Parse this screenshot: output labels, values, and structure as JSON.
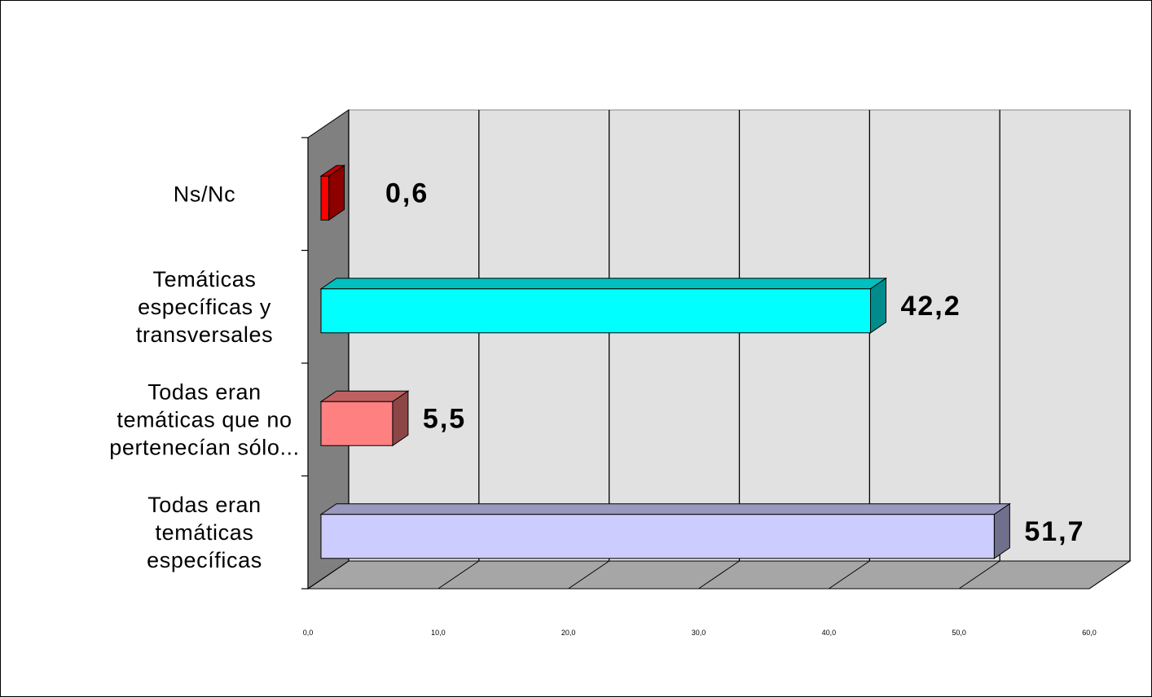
{
  "chart_data": {
    "type": "bar",
    "orientation": "horizontal",
    "three_d": true,
    "categories": [
      "Todas eran temáticas específicas",
      "Todas eran temáticas que no pertenecían sólo...",
      "Temáticas específicas y transversales",
      "Ns/Nc"
    ],
    "category_lines": [
      [
        "Todas eran",
        "temáticas",
        "específicas"
      ],
      [
        "Todas eran",
        "temáticas que no",
        "pertenecían sólo..."
      ],
      [
        "Temáticas",
        "específicas y",
        "transversales"
      ],
      [
        "Ns/Nc"
      ]
    ],
    "values": [
      51.7,
      5.5,
      42.2,
      0.6
    ],
    "data_labels": [
      "51,7",
      "5,5",
      "42,2",
      "0,6"
    ],
    "colors": [
      "#CCCCFF",
      "#FF8080",
      "#00FFFF",
      "#FF0000"
    ],
    "xlim": [
      0,
      60
    ],
    "ticks": [
      0,
      10,
      20,
      30,
      40,
      50,
      60
    ],
    "tick_labels": [
      "0,0",
      "10,0",
      "20,0",
      "30,0",
      "40,0",
      "50,0",
      "60,0"
    ],
    "grid": true,
    "legend": "none"
  }
}
